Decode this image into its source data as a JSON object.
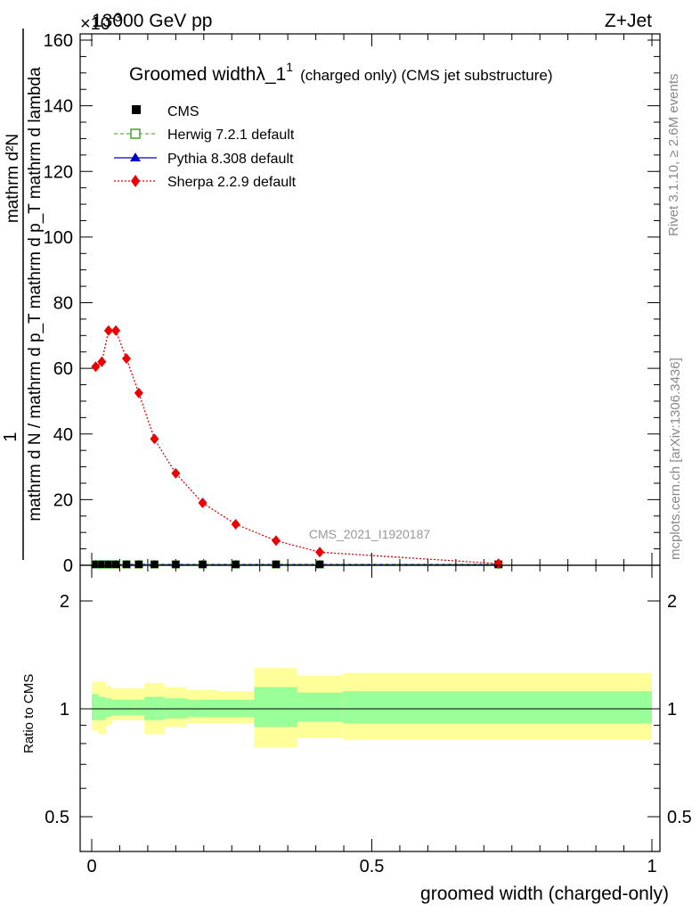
{
  "header": {
    "energy": "13000 GeV pp",
    "process": "Z+Jet",
    "exponent": "×10",
    "exponent_power": "-3"
  },
  "main_plot": {
    "title_main": "Groomed width",
    "title_symbol": "λ_1",
    "title_super": "1",
    "title_tail": "(charged only) (CMS jet substructure)",
    "ylabel_num": "mathrm d²N",
    "ylabel_frac": "mathrm d p_T mathrm d p_T mathrm d lambda",
    "ylabel_one": "1",
    "ylabel_den": "mathrm d N / mathrm d p_T mathrm d p_T mathrm d lambda",
    "ylabel_num_text": "mathrm d²N",
    "ylabel_den_text": "mathrm d N / mathrm d p_T mathrm d p_T mathrm d lambda",
    "watermark": "CMS_2021_I1920187",
    "yticks": [
      "0",
      "20",
      "40",
      "60",
      "80",
      "100",
      "120",
      "140",
      "160"
    ]
  },
  "legend": [
    {
      "label": "CMS",
      "color": "#000000",
      "marker": "filled-square"
    },
    {
      "label": "Herwig 7.2.1 default",
      "color": "#3a9b1e",
      "marker": "open-square"
    },
    {
      "label": "Pythia 8.308 default",
      "color": "#0000cc",
      "marker": "filled-triangle"
    },
    {
      "label": "Sherpa 2.2.9 default",
      "color": "#ee0000",
      "marker": "filled-diamond"
    }
  ],
  "side": {
    "rivet": "Rivet 3.1.10, ≥ 2.6M events",
    "mcplots": "mcplots.cern.ch [arXiv:1306.3436]"
  },
  "ratio_plot": {
    "ylabel": "Ratio to CMS",
    "xlabel": "groomed width (charged-only)",
    "yticks": [
      "0.5",
      "1",
      "2"
    ],
    "xticks": [
      "0",
      "0.5",
      "1"
    ]
  },
  "chart_data": {
    "type": "line",
    "xlabel": "groomed width (charged-only)",
    "main_ylim": [
      0,
      162
    ],
    "ratio_ylim": [
      0.4,
      2.4
    ],
    "xlim": [
      -0.02,
      1.01
    ],
    "sherpa_points": [
      {
        "x": 0.007,
        "y": 60.5
      },
      {
        "x": 0.018,
        "y": 62.0
      },
      {
        "x": 0.03,
        "y": 71.5
      },
      {
        "x": 0.043,
        "y": 71.5
      },
      {
        "x": 0.062,
        "y": 63.0
      },
      {
        "x": 0.084,
        "y": 52.5
      },
      {
        "x": 0.112,
        "y": 38.5
      },
      {
        "x": 0.15,
        "y": 28.0
      },
      {
        "x": 0.198,
        "y": 19.0
      },
      {
        "x": 0.257,
        "y": 12.5
      },
      {
        "x": 0.329,
        "y": 7.5
      },
      {
        "x": 0.407,
        "y": 4.0
      },
      {
        "x": 0.726,
        "y": 0.5
      }
    ],
    "cms_points_x": [
      0.007,
      0.018,
      0.03,
      0.043,
      0.062,
      0.084,
      0.112,
      0.15,
      0.198,
      0.257,
      0.329,
      0.407,
      0.726
    ],
    "ratio_bands": [
      {
        "x0": 0.0,
        "x1": 0.012,
        "inner": [
          0.93,
          1.1
        ],
        "outer": [
          0.87,
          1.19
        ]
      },
      {
        "x0": 0.012,
        "x1": 0.025,
        "inner": [
          0.93,
          1.08
        ],
        "outer": [
          0.85,
          1.19
        ]
      },
      {
        "x0": 0.025,
        "x1": 0.036,
        "inner": [
          0.95,
          1.07
        ],
        "outer": [
          0.9,
          1.16
        ]
      },
      {
        "x0": 0.036,
        "x1": 0.05,
        "inner": [
          0.96,
          1.06
        ],
        "outer": [
          0.93,
          1.14
        ]
      },
      {
        "x0": 0.05,
        "x1": 0.075,
        "inner": [
          0.96,
          1.06
        ],
        "outer": [
          0.93,
          1.14
        ]
      },
      {
        "x0": 0.075,
        "x1": 0.094,
        "inner": [
          0.96,
          1.06
        ],
        "outer": [
          0.93,
          1.14
        ]
      },
      {
        "x0": 0.094,
        "x1": 0.13,
        "inner": [
          0.93,
          1.08
        ],
        "outer": [
          0.85,
          1.18
        ]
      },
      {
        "x0": 0.13,
        "x1": 0.17,
        "inner": [
          0.94,
          1.07
        ],
        "outer": [
          0.89,
          1.15
        ]
      },
      {
        "x0": 0.17,
        "x1": 0.225,
        "inner": [
          0.95,
          1.06
        ],
        "outer": [
          0.91,
          1.13
        ]
      },
      {
        "x0": 0.225,
        "x1": 0.29,
        "inner": [
          0.95,
          1.06
        ],
        "outer": [
          0.91,
          1.12
        ]
      },
      {
        "x0": 0.29,
        "x1": 0.367,
        "inner": [
          0.89,
          1.15
        ],
        "outer": [
          0.78,
          1.3
        ]
      },
      {
        "x0": 0.367,
        "x1": 0.448,
        "inner": [
          0.92,
          1.11
        ],
        "outer": [
          0.83,
          1.24
        ]
      },
      {
        "x0": 0.448,
        "x1": 1.0,
        "inner": [
          0.91,
          1.12
        ],
        "outer": [
          0.82,
          1.26
        ]
      }
    ],
    "colors": {
      "inner_band": "#99ff99",
      "outer_band": "#ffff99",
      "sherpa": "#ee0000",
      "cms": "#000000",
      "herwig": "#3a9b1e",
      "pythia": "#0000cc"
    }
  }
}
